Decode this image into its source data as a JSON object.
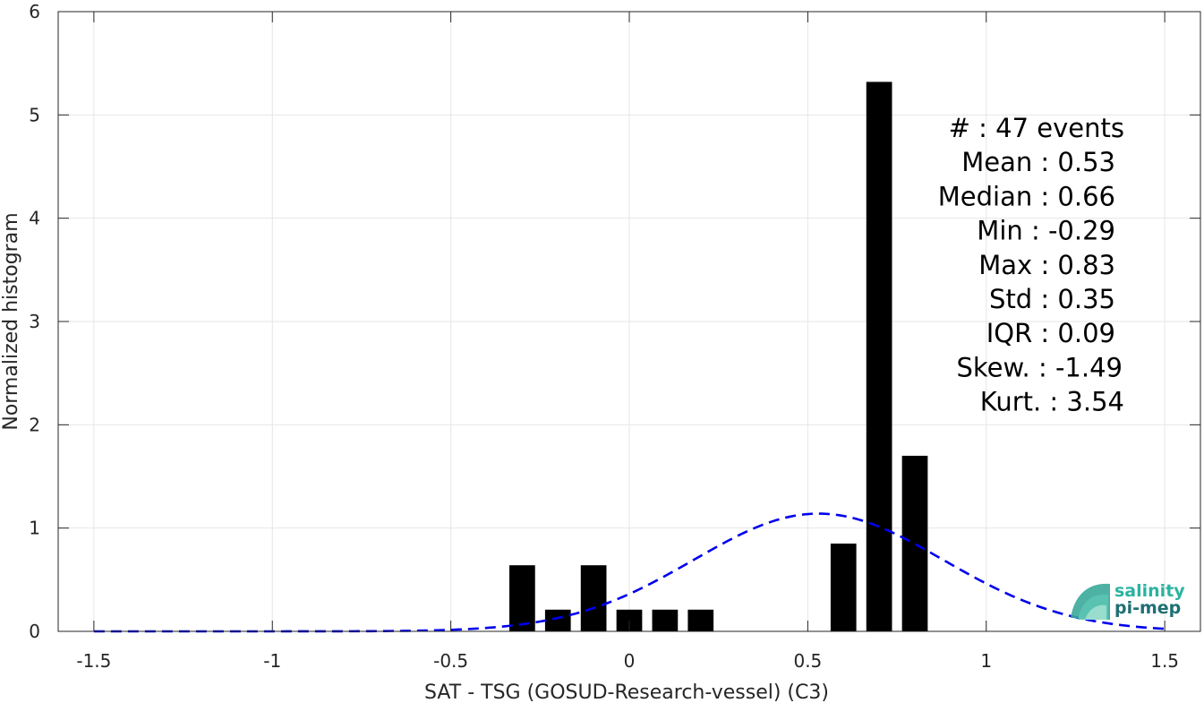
{
  "chart_data": {
    "type": "bar",
    "xlabel": "SAT - TSG (GOSUD-Research-vessel) (C3)",
    "ylabel": "Normalized histogram",
    "xlim": [
      -1.6,
      1.6
    ],
    "ylim": [
      0,
      6
    ],
    "xticks": [
      -1.5,
      -1,
      -0.5,
      0,
      0.5,
      1,
      1.5
    ],
    "xtick_labels": [
      "-1.5",
      "-1",
      "-0.5",
      "0",
      "0.5",
      "1",
      "1.5"
    ],
    "yticks": [
      0,
      1,
      2,
      3,
      4,
      5,
      6
    ],
    "ytick_labels": [
      "0",
      "1",
      "2",
      "3",
      "4",
      "5",
      "6"
    ],
    "grid": true,
    "bin_width": 0.1,
    "bars": [
      {
        "x": -0.3,
        "value": 0.64
      },
      {
        "x": -0.2,
        "value": 0.21
      },
      {
        "x": -0.1,
        "value": 0.64
      },
      {
        "x": 0.0,
        "value": 0.21
      },
      {
        "x": 0.1,
        "value": 0.21
      },
      {
        "x": 0.2,
        "value": 0.21
      },
      {
        "x": 0.6,
        "value": 0.85
      },
      {
        "x": 0.7,
        "value": 5.32
      },
      {
        "x": 0.8,
        "value": 1.7
      }
    ],
    "fit": {
      "style": "dashed",
      "color": "#0000ee",
      "mean": 0.53,
      "std": 0.35,
      "x_range": [
        -1.5,
        1.5
      ]
    },
    "bar_color": "#000000"
  },
  "stats": [
    {
      "label": "#  : 47 events"
    },
    {
      "label": "Mean : 0.53"
    },
    {
      "label": "Median : 0.66"
    },
    {
      "label": "Min : -0.29"
    },
    {
      "label": "Max : 0.83"
    },
    {
      "label": "Std : 0.35"
    },
    {
      "label": "IQR : 0.09"
    },
    {
      "label": "Skew. : -1.49"
    },
    {
      "label": "Kurt. : 3.54"
    }
  ],
  "logo": {
    "line1": "salinity",
    "line2": "pi-mep",
    "color1": "#2bb3a1",
    "color2": "#1f6f73"
  }
}
